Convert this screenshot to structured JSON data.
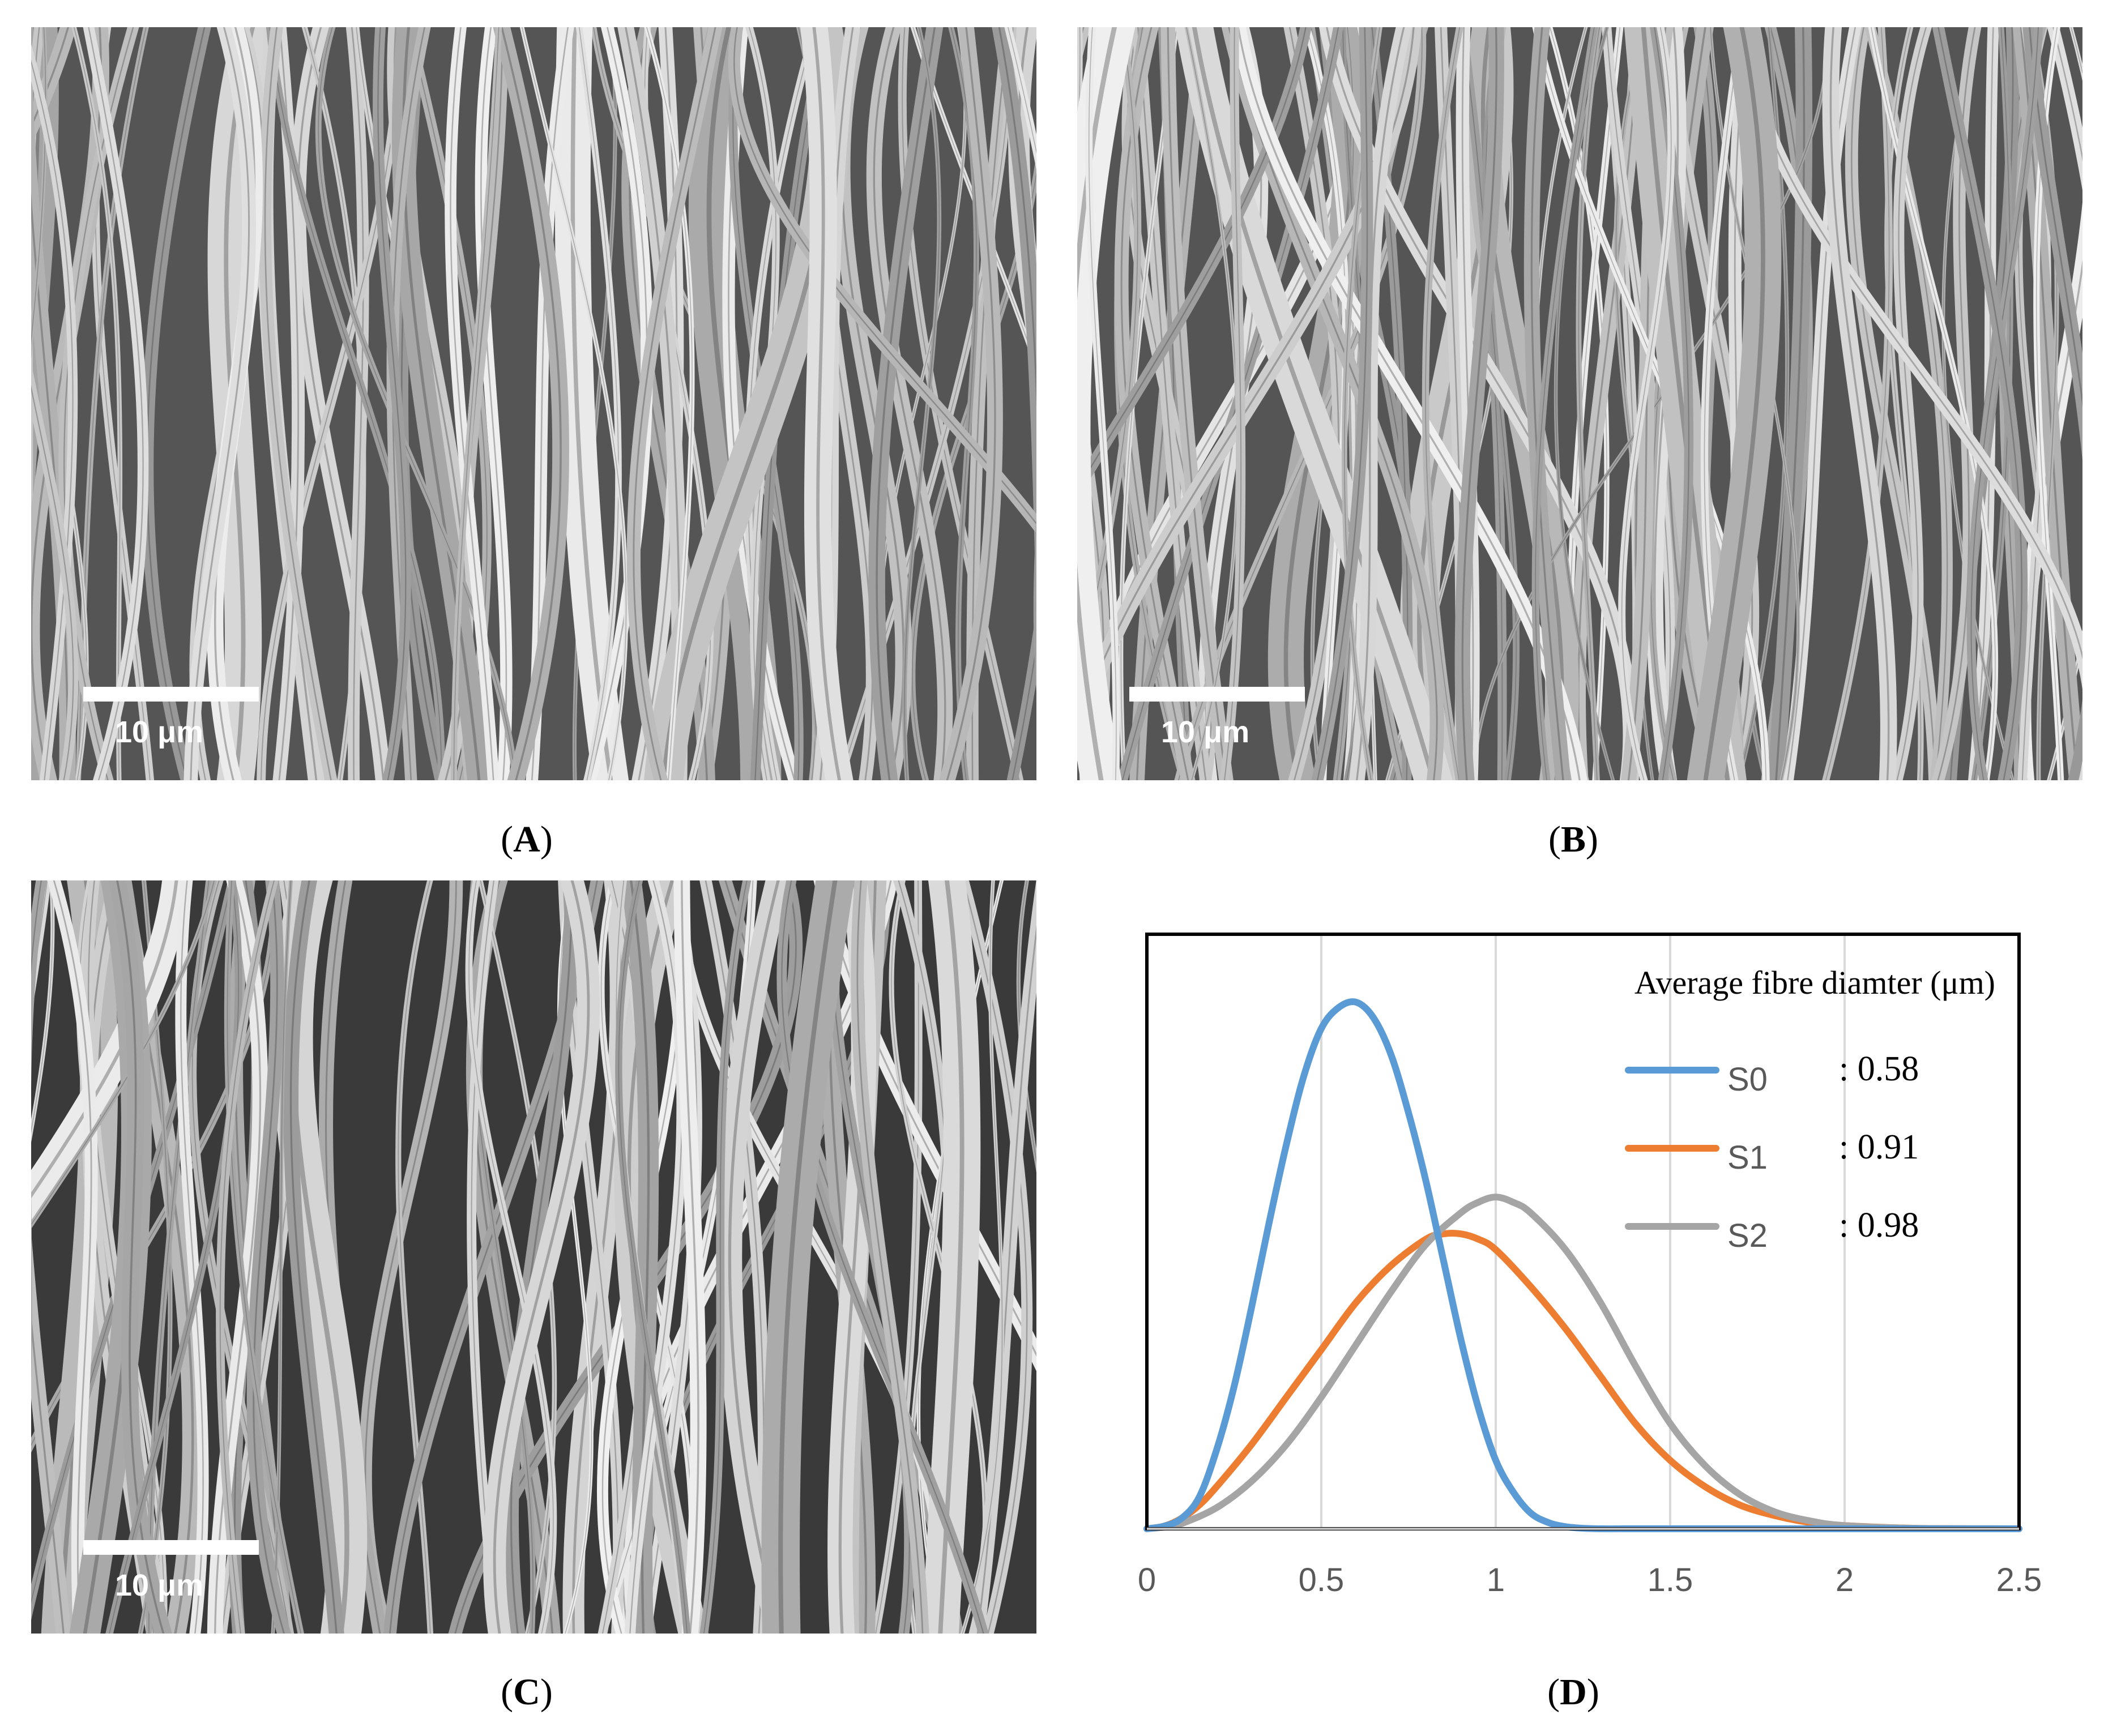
{
  "panels": [
    {
      "id": "A",
      "type": "sem-micrograph",
      "scale_bar_label": "10 μm",
      "caption": "A"
    },
    {
      "id": "B",
      "type": "sem-micrograph",
      "scale_bar_label": "10 μm",
      "caption": "B"
    },
    {
      "id": "C",
      "type": "sem-micrograph",
      "scale_bar_label": "10 μm",
      "caption": "C"
    },
    {
      "id": "D",
      "type": "chart",
      "caption": "D"
    }
  ],
  "chart_data": {
    "type": "line",
    "title": "",
    "xlabel": "",
    "ylabel": "",
    "xlim": [
      0,
      2.5
    ],
    "ylim": [
      0,
      1.0
    ],
    "x_ticks": [
      "0",
      "0.5",
      "1",
      "1.5",
      "2",
      "2.5"
    ],
    "y_ticks": [],
    "grid": "vertical",
    "legend_title": "Average fibre diamter (μm)",
    "legend_position": "top-right",
    "colors": {
      "S0": "#5b9bd5",
      "S1": "#ed7d31",
      "S2": "#a5a5a5",
      "grid": "#d9d9d9",
      "tick_label": "#595959"
    },
    "series": [
      {
        "name": "S0",
        "legend_value": ": 0.58",
        "x": [
          0,
          0.05,
          0.1,
          0.15,
          0.2,
          0.25,
          0.3,
          0.35,
          0.4,
          0.45,
          0.5,
          0.55,
          0.6,
          0.65,
          0.7,
          0.75,
          0.8,
          0.85,
          0.9,
          0.95,
          1.0,
          1.05,
          1.1,
          1.15,
          1.2,
          1.25,
          1.3,
          1.4,
          1.5,
          1.75,
          2.0,
          2.5
        ],
        "y": [
          0.0,
          0.005,
          0.02,
          0.06,
          0.15,
          0.27,
          0.42,
          0.58,
          0.73,
          0.86,
          0.95,
          0.99,
          1.0,
          0.97,
          0.9,
          0.79,
          0.66,
          0.51,
          0.36,
          0.23,
          0.13,
          0.07,
          0.03,
          0.012,
          0.004,
          0.001,
          0.0,
          0.0,
          0.0,
          0.0,
          0.0,
          0.0
        ]
      },
      {
        "name": "S1",
        "legend_value": ": 0.91",
        "x": [
          0,
          0.05,
          0.1,
          0.15,
          0.2,
          0.3,
          0.4,
          0.5,
          0.6,
          0.7,
          0.8,
          0.85,
          0.9,
          0.95,
          1.0,
          1.1,
          1.2,
          1.3,
          1.4,
          1.5,
          1.6,
          1.7,
          1.8,
          1.9,
          2.0,
          2.2,
          2.5
        ],
        "y": [
          0.0,
          0.005,
          0.02,
          0.045,
          0.08,
          0.16,
          0.25,
          0.34,
          0.43,
          0.5,
          0.55,
          0.56,
          0.56,
          0.55,
          0.53,
          0.46,
          0.38,
          0.29,
          0.2,
          0.13,
          0.08,
          0.045,
          0.025,
          0.012,
          0.006,
          0.001,
          0.0
        ]
      },
      {
        "name": "S2",
        "legend_value": ": 0.98",
        "x": [
          0,
          0.05,
          0.1,
          0.2,
          0.3,
          0.4,
          0.5,
          0.6,
          0.7,
          0.8,
          0.9,
          0.95,
          1.0,
          1.05,
          1.1,
          1.2,
          1.3,
          1.4,
          1.5,
          1.6,
          1.7,
          1.8,
          1.9,
          2.0,
          2.2,
          2.5
        ],
        "y": [
          0.0,
          0.003,
          0.01,
          0.04,
          0.09,
          0.16,
          0.25,
          0.35,
          0.45,
          0.54,
          0.6,
          0.62,
          0.63,
          0.62,
          0.6,
          0.53,
          0.43,
          0.31,
          0.2,
          0.12,
          0.065,
          0.032,
          0.015,
          0.006,
          0.001,
          0.0
        ]
      }
    ]
  }
}
